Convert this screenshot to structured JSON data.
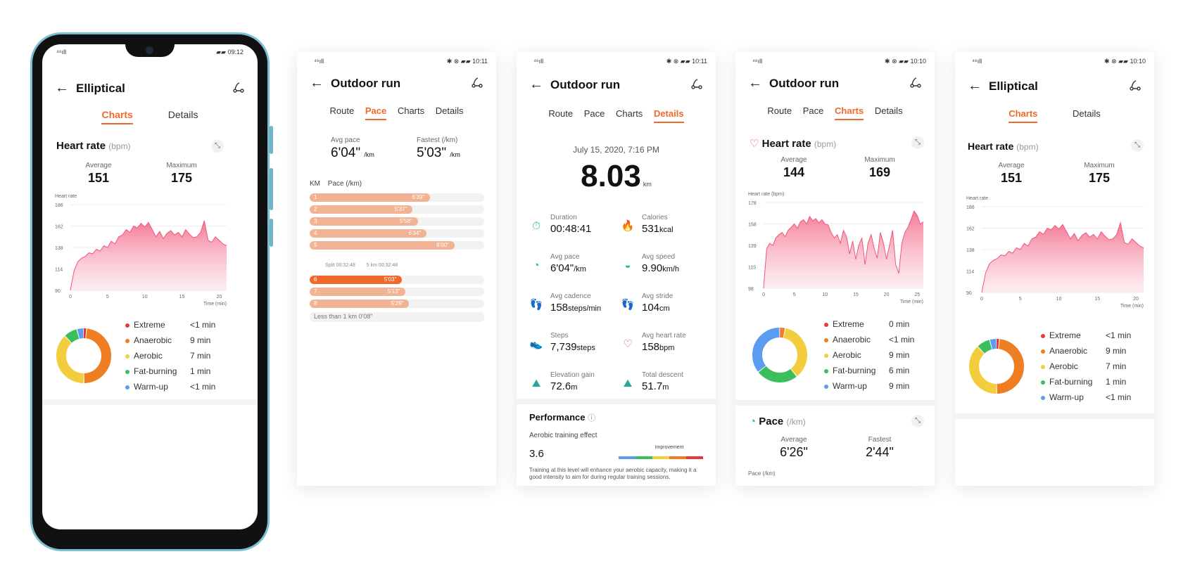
{
  "colors": {
    "accent": "#ef6a2a",
    "extreme": "#e53935",
    "anaerobic": "#ef7d22",
    "aerobic": "#f4cd3e",
    "fat_burning": "#3bbf5c",
    "warm_up": "#5b9bf0",
    "pace_bar": "#f2b394",
    "pace_bar_fast": "#ee6a2c"
  },
  "icons": {
    "back": "back-arrow-icon",
    "route": "route-icon",
    "expand": "expand-icon"
  },
  "screen1": {
    "status": {
      "left": "⁴⁶ıll",
      "right": "▰▰ 09:12"
    },
    "title": "Elliptical",
    "tabs": [
      "Charts",
      "Details"
    ],
    "section": "Heart rate",
    "unit": "(bpm)",
    "avg_label": "Average",
    "avg": "151",
    "max_label": "Maximum",
    "max": "175",
    "chart_data": {
      "type": "area",
      "title": "Heart rate",
      "ylabel": "Heart rate",
      "xlabel": "Time (min)",
      "y_ticks": [
        "186",
        "162",
        "138",
        "114",
        "90"
      ],
      "x_ticks": [
        "0",
        "5",
        "10",
        "15",
        "20"
      ],
      "ylim": [
        90,
        186
      ],
      "xlim": [
        0,
        21
      ],
      "x": [
        0,
        0.5,
        1,
        1.5,
        2,
        2.5,
        3,
        3.5,
        4,
        4.5,
        5,
        5.5,
        6,
        6.5,
        7,
        7.5,
        8,
        8.5,
        9,
        9.5,
        10,
        10.5,
        11,
        11.5,
        12,
        12.5,
        13,
        13.5,
        14,
        14.5,
        15,
        15.5,
        16,
        16.5,
        17,
        17.5,
        18,
        18.5,
        19,
        19.5,
        20,
        20.5,
        21
      ],
      "values": [
        90,
        112,
        122,
        126,
        128,
        132,
        131,
        136,
        134,
        140,
        138,
        145,
        142,
        150,
        152,
        158,
        155,
        162,
        160,
        165,
        161,
        166,
        158,
        150,
        156,
        148,
        154,
        157,
        152,
        155,
        150,
        158,
        153,
        149,
        150,
        155,
        168,
        146,
        144,
        150,
        146,
        142,
        140
      ]
    },
    "zones": [
      {
        "name": "Extreme",
        "value": "<1 min"
      },
      {
        "name": "Anaerobic",
        "value": "9 min"
      },
      {
        "name": "Aerobic",
        "value": "7 min"
      },
      {
        "name": "Fat-burning",
        "value": "1 min"
      },
      {
        "name": "Warm-up",
        "value": "<1 min"
      }
    ],
    "donut": [
      0.02,
      0.48,
      0.38,
      0.08,
      0.04
    ]
  },
  "screen2": {
    "status": {
      "left": "⁴⁶ıll",
      "right": "✱ ⊗ ▰▰ 10:11"
    },
    "title": "Outdoor run",
    "tabs": [
      "Route",
      "Pace",
      "Charts",
      "Details"
    ],
    "avg_label": "Avg pace",
    "avg": "6'04\"",
    "avg_unit": "/km",
    "fast_label": "Fastest (/km)",
    "fast": "5'03\"",
    "fast_unit": "/km",
    "km_label": "KM",
    "pace_label": "Pace (/km)",
    "splits": [
      {
        "n": "1",
        "v": "6'39\"",
        "frac": 0.69
      },
      {
        "n": "2",
        "v": "5'37\"",
        "frac": 0.59
      },
      {
        "n": "3",
        "v": "5'58\"",
        "frac": 0.62
      },
      {
        "n": "4",
        "v": "6'34\"",
        "frac": 0.67
      },
      {
        "n": "5",
        "v": "8'00\"",
        "frac": 0.83
      }
    ],
    "split_note": "Split 00:32:48",
    "split_note2": "5 km 00:32:48",
    "splits2": [
      {
        "n": "6",
        "v": "5'03\"",
        "frac": 0.53,
        "fast": true
      },
      {
        "n": "7",
        "v": "5'13\"",
        "frac": 0.55
      },
      {
        "n": "8",
        "v": "5'29\"",
        "frac": 0.57
      }
    ],
    "less_than": "Less than 1 km 0'08\""
  },
  "screen3": {
    "status": {
      "left": "⁴⁶ıll",
      "right": "✱ ⊗ ▰▰ 10:11"
    },
    "title": "Outdoor run",
    "tabs": [
      "Route",
      "Pace",
      "Charts",
      "Details"
    ],
    "date": "July 15, 2020, 7:16 PM",
    "distance": "8.03",
    "distance_unit": "km",
    "items": [
      {
        "icon": "⏱",
        "color": "#2dbf6e",
        "label": "Duration",
        "value": "00:48:41",
        "unit": "",
        "name": "stopwatch-icon"
      },
      {
        "icon": "🔥",
        "color": "#ef6a2a",
        "label": "Calories",
        "value": "531",
        "unit": "kcal",
        "name": "flame-icon"
      },
      {
        "icon": "◔",
        "color": "#2dbf6e",
        "label": "Avg pace",
        "value": "6'04\"",
        "unit": "/km",
        "name": "pace-gauge-icon"
      },
      {
        "icon": "◒",
        "color": "#2dbf6e",
        "label": "Avg speed",
        "value": "9.90",
        "unit": "km/h",
        "name": "speedometer-icon"
      },
      {
        "icon": "👣",
        "color": "#f3b31a",
        "label": "Avg cadence",
        "value": "158",
        "unit": "steps/min",
        "name": "footprints-icon"
      },
      {
        "icon": "👣",
        "color": "#f3b31a",
        "label": "Avg stride",
        "value": "104",
        "unit": "cm",
        "name": "stride-icon"
      },
      {
        "icon": "👟",
        "color": "#3a8bd6",
        "label": "Steps",
        "value": "7,739",
        "unit": "steps",
        "name": "shoe-icon"
      },
      {
        "icon": "♡",
        "color": "#e53950",
        "label": "Avg heart rate",
        "value": "158",
        "unit": "bpm",
        "name": "heart-rate-icon"
      },
      {
        "icon": "⛰",
        "color": "#2aa6a0",
        "label": "Elevation gain",
        "value": "72.6",
        "unit": "m",
        "name": "elevation-gain-icon"
      },
      {
        "icon": "⛰",
        "color": "#2aa6a0",
        "label": "Total descent",
        "value": "51.7",
        "unit": "m",
        "name": "descent-icon"
      }
    ],
    "performance": "Performance",
    "info": "ⓘ",
    "aerobic_label": "Aerobic training effect",
    "aerobic_value": "3.6",
    "improvement": "Improvement",
    "note": "Training at this level will enhance your aerobic capacity, making it a good intensity to aim for during regular training sessions."
  },
  "screen4": {
    "status": {
      "left": "⁴⁶ıll",
      "right": "✱ ⊗ ▰▰ 10:10"
    },
    "title": "Outdoor run",
    "tabs": [
      "Route",
      "Pace",
      "Charts",
      "Details"
    ],
    "section": "Heart rate",
    "unit": "(bpm)",
    "avg_label": "Average",
    "avg": "144",
    "max_label": "Maximum",
    "max": "169",
    "chart_data": {
      "type": "area",
      "title": "Heart rate",
      "ylabel": "Heart rate (bpm)",
      "xlabel": "Time (min)",
      "y_ticks": [
        "178",
        "158",
        "139",
        "115",
        "98"
      ],
      "x_ticks": [
        "0",
        "5",
        "10",
        "15",
        "20",
        "25"
      ],
      "ylim": [
        98,
        178
      ],
      "xlim": [
        0,
        26
      ],
      "x": [
        0,
        0.5,
        1,
        1.5,
        2,
        2.5,
        3,
        3.5,
        4,
        4.5,
        5,
        5.5,
        6,
        6.5,
        7,
        7.5,
        8,
        8.5,
        9,
        9.5,
        10,
        10.5,
        11,
        11.5,
        12,
        12.5,
        13,
        13.5,
        14,
        14.5,
        15,
        15.5,
        16,
        16.5,
        17,
        17.5,
        18,
        18.5,
        19,
        19.5,
        20,
        20.5,
        21,
        21.5,
        22,
        22.5,
        23,
        23.5,
        24,
        24.5,
        25,
        25.5,
        26
      ],
      "values": [
        98,
        135,
        140,
        138,
        145,
        148,
        150,
        146,
        152,
        155,
        158,
        154,
        160,
        162,
        158,
        165,
        161,
        163,
        159,
        162,
        158,
        157,
        150,
        145,
        148,
        140,
        152,
        146,
        130,
        142,
        125,
        138,
        145,
        120,
        140,
        148,
        135,
        126,
        150,
        140,
        125,
        138,
        152,
        120,
        112,
        140,
        150,
        155,
        162,
        170,
        166,
        158,
        160
      ]
    },
    "zones": [
      {
        "name": "Extreme",
        "value": "0 min"
      },
      {
        "name": "Anaerobic",
        "value": "<1 min"
      },
      {
        "name": "Aerobic",
        "value": "9 min"
      },
      {
        "name": "Fat-burning",
        "value": "6 min"
      },
      {
        "name": "Warm-up",
        "value": "9 min"
      }
    ],
    "donut": [
      0.005,
      0.03,
      0.36,
      0.25,
      0.355
    ],
    "pace_section": "Pace",
    "pace_unit": "(/km)",
    "pace_avg_label": "Average",
    "pace_avg": "6'26\"",
    "pace_fast_label": "Fastest",
    "pace_fast": "2'44\"",
    "pace_axis": "Pace (/km)"
  },
  "screen5": {
    "status": {
      "left": "⁴⁶ıll",
      "right": "✱ ⊗ ▰▰ 10:10"
    },
    "title": "Elliptical",
    "tabs": [
      "Charts",
      "Details"
    ],
    "section": "Heart rate",
    "unit": "(bpm)",
    "avg_label": "Average",
    "avg": "151",
    "max_label": "Maximum",
    "max": "175",
    "chart_data": {
      "type": "area",
      "title": "Heart rate",
      "ylabel": "Heart rate",
      "xlabel": "Time (min)",
      "y_ticks": [
        "186",
        "162",
        "138",
        "114",
        "90"
      ],
      "x_ticks": [
        "0",
        "5",
        "10",
        "15",
        "20"
      ],
      "ylim": [
        90,
        186
      ],
      "xlim": [
        0,
        21
      ],
      "x": [
        0,
        0.5,
        1,
        1.5,
        2,
        2.5,
        3,
        3.5,
        4,
        4.5,
        5,
        5.5,
        6,
        6.5,
        7,
        7.5,
        8,
        8.5,
        9,
        9.5,
        10,
        10.5,
        11,
        11.5,
        12,
        12.5,
        13,
        13.5,
        14,
        14.5,
        15,
        15.5,
        16,
        16.5,
        17,
        17.5,
        18,
        18.5,
        19,
        19.5,
        20,
        20.5,
        21
      ],
      "values": [
        90,
        112,
        122,
        126,
        128,
        132,
        131,
        136,
        134,
        140,
        138,
        145,
        142,
        150,
        152,
        158,
        155,
        162,
        160,
        165,
        161,
        166,
        158,
        150,
        156,
        148,
        154,
        157,
        152,
        155,
        150,
        158,
        153,
        149,
        150,
        155,
        168,
        146,
        144,
        150,
        146,
        142,
        140
      ]
    },
    "zones": [
      {
        "name": "Extreme",
        "value": "<1 min"
      },
      {
        "name": "Anaerobic",
        "value": "9 min"
      },
      {
        "name": "Aerobic",
        "value": "7 min"
      },
      {
        "name": "Fat-burning",
        "value": "1 min"
      },
      {
        "name": "Warm-up",
        "value": "<1 min"
      }
    ],
    "donut": [
      0.02,
      0.48,
      0.38,
      0.08,
      0.04
    ]
  }
}
